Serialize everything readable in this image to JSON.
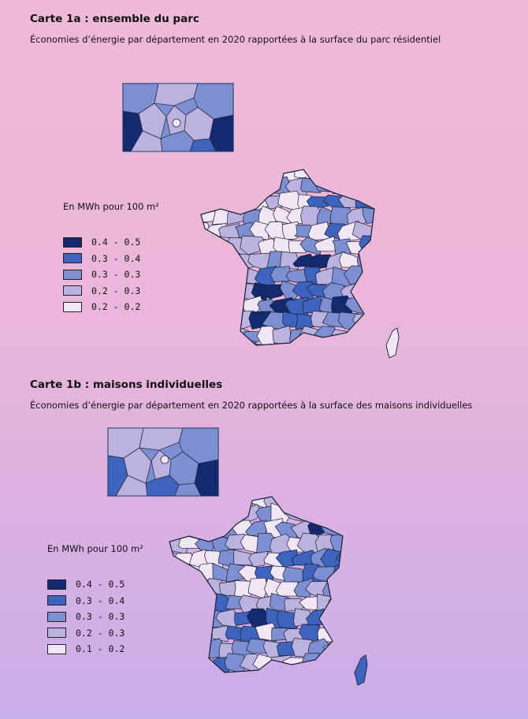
{
  "colors": {
    "bin_1": "#f1e6f4",
    "bin_2": "#bcb2e0",
    "bin_3": "#7c8fd1",
    "bin_4": "#3e63bd",
    "bin_5": "#142a6e"
  },
  "map_1a": {
    "title": "Carte 1a  : ensemble du parc",
    "subtitle": "Économies d’énergie par département en 2020 rapportées à la surface du parc résidentiel",
    "legend_title": "En MWh pour 100 m²",
    "legend": [
      {
        "label": "0.4 - 0.5",
        "color": "#142a6e"
      },
      {
        "label": "0.3 - 0.4",
        "color": "#3e63bd"
      },
      {
        "label": "0.3 - 0.3",
        "color": "#7c8fd1"
      },
      {
        "label": "0.2 - 0.3",
        "color": "#bcb2e0"
      },
      {
        "label": "0.2 - 0.2",
        "color": "#f1e6f4"
      }
    ]
  },
  "map_1b": {
    "title": "Carte 1b : maisons individuelles",
    "subtitle": "Économies d’énergie par département en 2020 rapportées à la surface des maisons individuelles",
    "legend_title": "En MWh pour 100 m²",
    "legend": [
      {
        "label": "0.4 - 0.5",
        "color": "#142a6e"
      },
      {
        "label": "0.3 - 0.4",
        "color": "#3e63bd"
      },
      {
        "label": "0.3 - 0.3",
        "color": "#7c8fd1"
      },
      {
        "label": "0.2 - 0.3",
        "color": "#bcb2e0"
      },
      {
        "label": "0.1 - 0.2",
        "color": "#f1e6f4"
      }
    ]
  }
}
